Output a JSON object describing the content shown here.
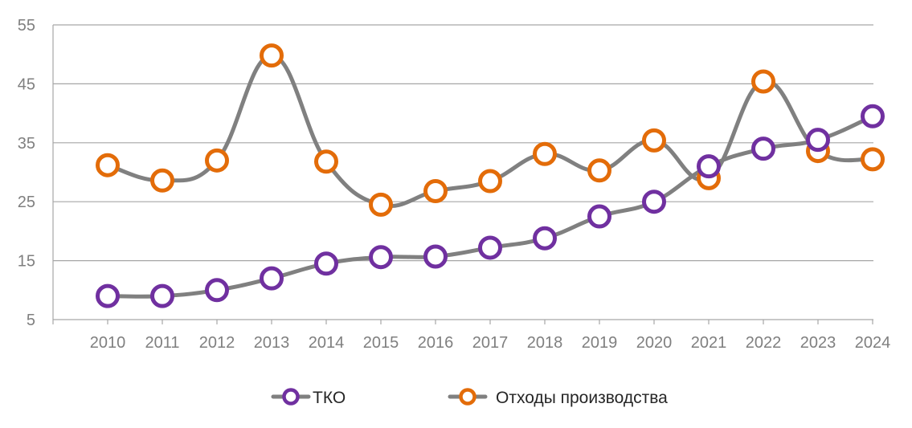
{
  "chart_data": {
    "type": "line",
    "title": "",
    "xlabel": "",
    "ylabel": "",
    "categories": [
      "2010",
      "2011",
      "2012",
      "2013",
      "2014",
      "2015",
      "2016",
      "2017",
      "2018",
      "2019",
      "2020",
      "2021",
      "2022",
      "2023",
      "2024"
    ],
    "ylim": [
      5,
      55
    ],
    "yticks": [
      "5",
      "15",
      "25",
      "35",
      "45",
      "55"
    ],
    "grid": "horizontal",
    "smooth": true,
    "legend_position": "bottom",
    "line_color": "#808080",
    "series": [
      {
        "name": "ТКО",
        "marker_color": "#7030a0",
        "values": [
          9,
          9,
          10,
          12,
          14.5,
          15.6,
          15.7,
          17.2,
          18.8,
          22.5,
          25,
          31,
          34,
          35.5,
          39.5
        ]
      },
      {
        "name": "Отходы производства",
        "marker_color": "#e36c09",
        "values": [
          31.2,
          28.6,
          32,
          49.8,
          31.8,
          24.5,
          26.8,
          28.5,
          33.1,
          30.3,
          35.4,
          29,
          45.4,
          33.6,
          32.2
        ]
      }
    ]
  }
}
